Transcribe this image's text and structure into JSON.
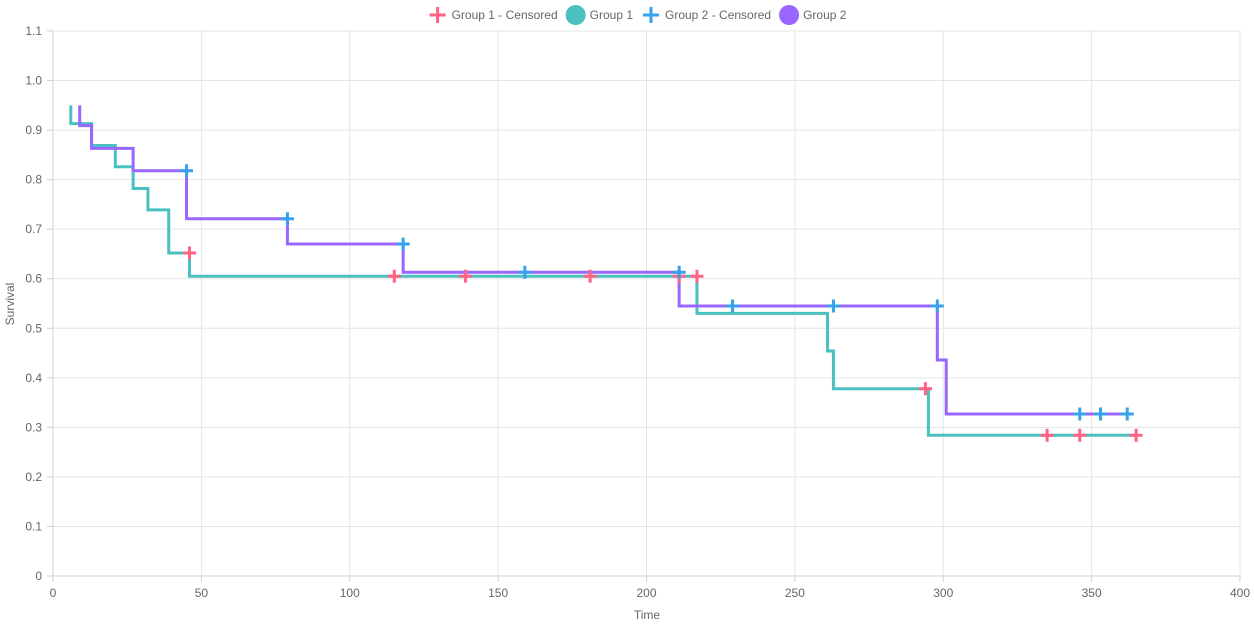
{
  "chart_data": {
    "type": "line",
    "subtype": "kaplan-meier-step",
    "title": "",
    "xlabel": "Time",
    "ylabel": "Survival",
    "xlim": [
      0,
      400
    ],
    "ylim": [
      0,
      1.1
    ],
    "xticks": [
      0,
      50,
      100,
      150,
      200,
      250,
      300,
      350,
      400
    ],
    "yticks": [
      0,
      0.1,
      0.2,
      0.3,
      0.4,
      0.5,
      0.6,
      0.7,
      0.8,
      0.9,
      1.0,
      1.1
    ],
    "xtick_labels": [
      "0",
      "50",
      "100",
      "150",
      "200",
      "250",
      "300",
      "350",
      "400"
    ],
    "ytick_labels": [
      "0",
      "0.1",
      "0.2",
      "0.3",
      "0.4",
      "0.5",
      "0.6",
      "0.7",
      "0.8",
      "0.9",
      "1.0",
      "1.1"
    ],
    "grid": true,
    "legend_position": "top-center",
    "legend": [
      {
        "label": "Group 1 - Censored",
        "marker": "cross",
        "color": "#ff6384"
      },
      {
        "label": "Group 1",
        "marker": "circle",
        "color": "#4bc0c0"
      },
      {
        "label": "Group 2 - Censored",
        "marker": "cross",
        "color": "#36a2eb"
      },
      {
        "label": "Group 2",
        "marker": "circle",
        "color": "#9966ff"
      }
    ],
    "series": [
      {
        "name": "Group 1",
        "color": "#4bc0c0",
        "steps": [
          [
            6,
            0.95
          ],
          [
            6,
            0.913
          ],
          [
            13,
            0.913
          ],
          [
            13,
            0.869
          ],
          [
            21,
            0.869
          ],
          [
            21,
            0.826
          ],
          [
            27,
            0.826
          ],
          [
            27,
            0.782
          ],
          [
            32,
            0.782
          ],
          [
            32,
            0.739
          ],
          [
            39,
            0.739
          ],
          [
            39,
            0.652
          ],
          [
            46,
            0.652
          ],
          [
            46,
            0.605
          ],
          [
            217,
            0.605
          ],
          [
            217,
            0.53
          ],
          [
            261,
            0.53
          ],
          [
            261,
            0.454
          ],
          [
            263,
            0.454
          ],
          [
            263,
            0.378
          ],
          [
            295,
            0.378
          ],
          [
            295,
            0.284
          ],
          [
            365,
            0.284
          ]
        ]
      },
      {
        "name": "Group 1 - Censored",
        "color": "#ff6384",
        "points": [
          [
            46,
            0.652
          ],
          [
            115,
            0.605
          ],
          [
            139,
            0.605
          ],
          [
            181,
            0.605
          ],
          [
            211,
            0.605
          ],
          [
            217,
            0.605
          ],
          [
            294,
            0.378
          ],
          [
            335,
            0.284
          ],
          [
            346,
            0.284
          ],
          [
            365,
            0.284
          ]
        ]
      },
      {
        "name": "Group 2",
        "color": "#9966ff",
        "steps": [
          [
            9,
            0.95
          ],
          [
            9,
            0.909
          ],
          [
            13,
            0.909
          ],
          [
            13,
            0.863
          ],
          [
            27,
            0.863
          ],
          [
            27,
            0.818
          ],
          [
            45,
            0.818
          ],
          [
            45,
            0.721
          ],
          [
            79,
            0.721
          ],
          [
            79,
            0.67
          ],
          [
            118,
            0.67
          ],
          [
            118,
            0.613
          ],
          [
            211,
            0.613
          ],
          [
            211,
            0.545
          ],
          [
            298,
            0.545
          ],
          [
            298,
            0.436
          ],
          [
            301,
            0.436
          ],
          [
            301,
            0.327
          ],
          [
            362,
            0.327
          ]
        ]
      },
      {
        "name": "Group 2 - Censored",
        "color": "#36a2eb",
        "points": [
          [
            45,
            0.818
          ],
          [
            79,
            0.721
          ],
          [
            118,
            0.67
          ],
          [
            159,
            0.613
          ],
          [
            211,
            0.613
          ],
          [
            229,
            0.545
          ],
          [
            263,
            0.545
          ],
          [
            298,
            0.545
          ],
          [
            346,
            0.327
          ],
          [
            353,
            0.327
          ],
          [
            362,
            0.327
          ]
        ]
      }
    ]
  }
}
